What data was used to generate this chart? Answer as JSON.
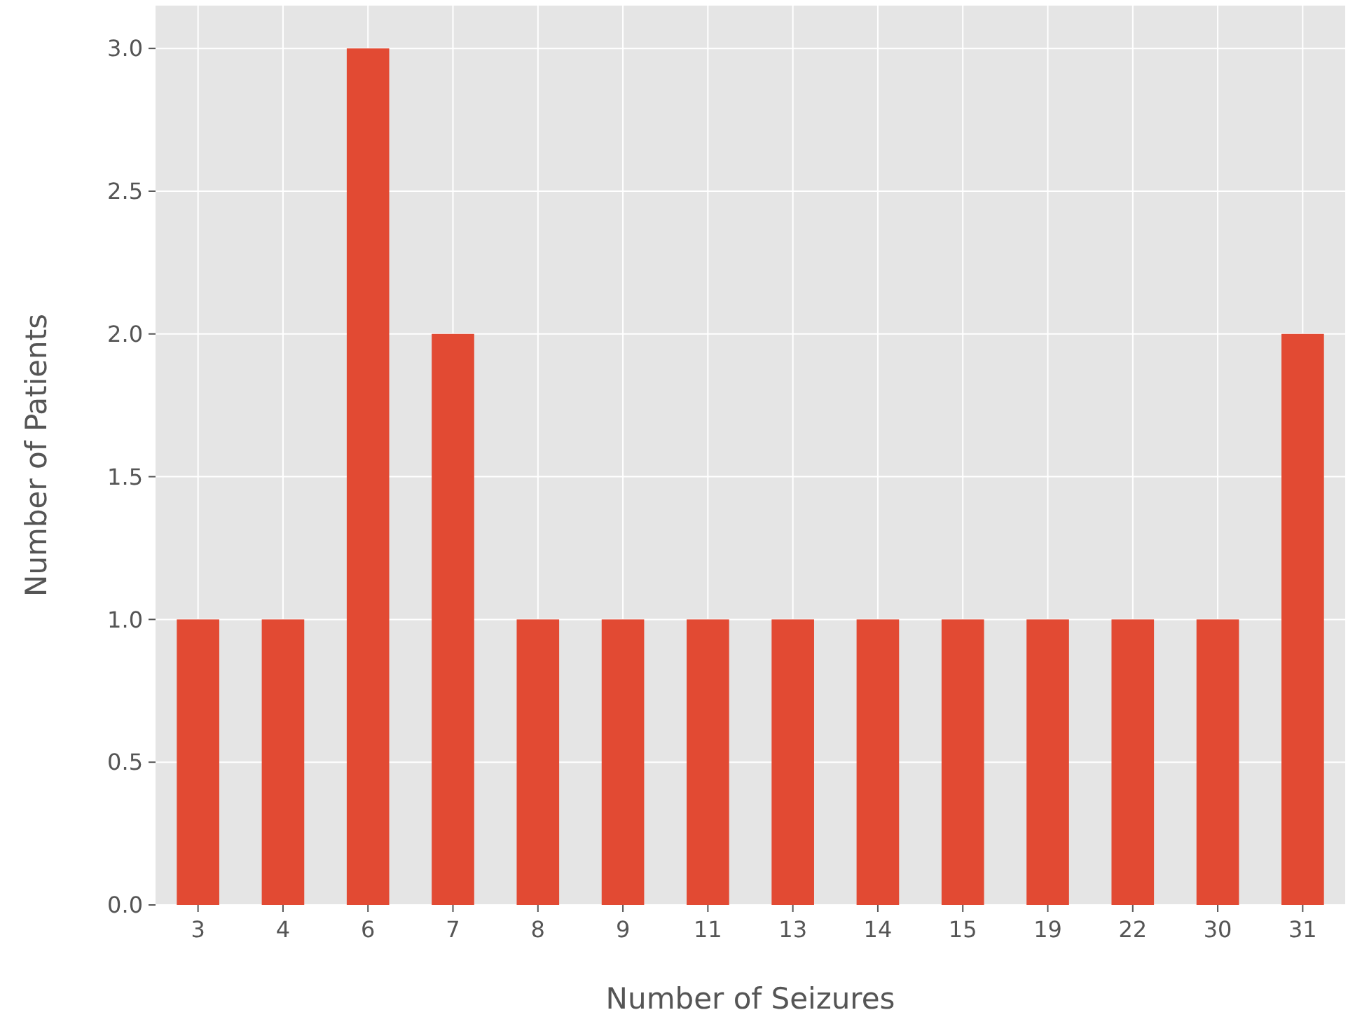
{
  "chart_data": {
    "type": "bar",
    "xlabel": "Number of Seizures",
    "ylabel": "Number of Patients",
    "categories": [
      "3",
      "4",
      "6",
      "7",
      "8",
      "9",
      "11",
      "13",
      "14",
      "15",
      "19",
      "22",
      "30",
      "31"
    ],
    "values": [
      1,
      1,
      3,
      2,
      1,
      1,
      1,
      1,
      1,
      1,
      1,
      1,
      1,
      2
    ],
    "color": "#e24a33",
    "ylim": [
      0,
      3.15
    ],
    "yticks": [
      {
        "value": 0,
        "label": "0.0"
      },
      {
        "value": 0.5,
        "label": "0.5"
      },
      {
        "value": 1,
        "label": "1.0"
      },
      {
        "value": 1.5,
        "label": "1.5"
      },
      {
        "value": 2,
        "label": "2.0"
      },
      {
        "value": 2.5,
        "label": "2.5"
      },
      {
        "value": 3,
        "label": "3.0"
      }
    ],
    "grid": true
  }
}
